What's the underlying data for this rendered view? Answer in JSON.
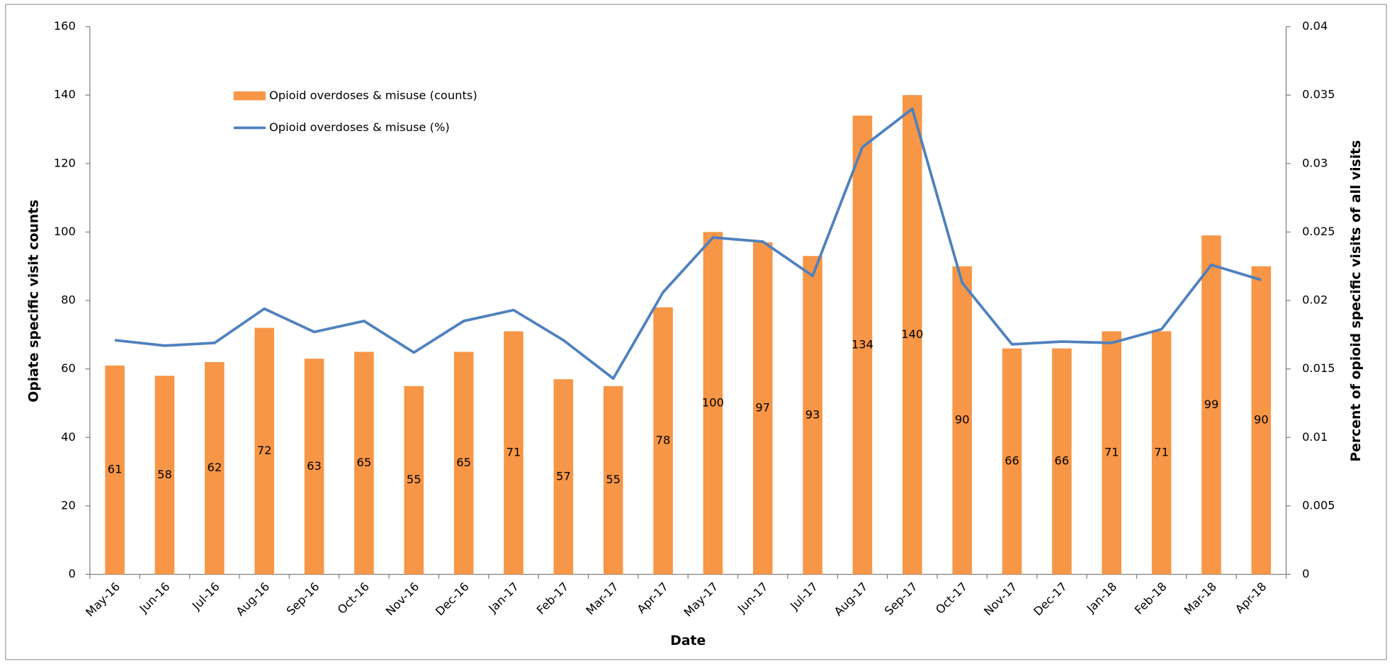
{
  "chart_data": {
    "type": "combo",
    "x_label": "Date",
    "y_label": "Opiate specific visit counts",
    "y2_label": "Percent of opioid specific visits of all visits",
    "categories": [
      "May-16",
      "Jun-16",
      "Jul-16",
      "Aug-16",
      "Sep-16",
      "Oct-16",
      "Nov-16",
      "Dec-16",
      "Jan-17",
      "Feb-17",
      "Mar-17",
      "Apr-17",
      "May-17",
      "Jun-17",
      "Jul-17",
      "Aug-17",
      "Sep-17",
      "Oct-17",
      "Nov-17",
      "Dec-17",
      "Jan-18",
      "Feb-18",
      "Mar-18",
      "Apr-18"
    ],
    "series": [
      {
        "name": "Opioid overdoses & misuse (counts)",
        "type": "bar",
        "color": "#f79646",
        "values": [
          61,
          58,
          62,
          72,
          63,
          65,
          55,
          65,
          71,
          57,
          55,
          78,
          100,
          97,
          93,
          134,
          140,
          90,
          66,
          66,
          71,
          71,
          99,
          90
        ]
      },
      {
        "name": "Opioid overdoses & misuse (%)",
        "type": "line",
        "axis": "y2",
        "color": "#4f81bd",
        "values": [
          0.0171,
          0.0167,
          0.0169,
          0.0194,
          0.0177,
          0.0185,
          0.0162,
          0.0185,
          0.0193,
          0.0171,
          0.0143,
          0.0206,
          0.0246,
          0.0243,
          0.0218,
          0.0312,
          0.034,
          0.0213,
          0.0168,
          0.017,
          0.0169,
          0.0179,
          0.0226,
          0.0215
        ]
      }
    ],
    "ylim": [
      0,
      160
    ],
    "yticks": [
      0,
      20,
      40,
      60,
      80,
      100,
      120,
      140,
      160
    ],
    "y2lim": [
      0,
      0.04
    ],
    "y2ticks": [
      0,
      0.005,
      0.01,
      0.015,
      0.02,
      0.025,
      0.03,
      0.035,
      0.04
    ],
    "legend": "top-left",
    "grid": false
  }
}
